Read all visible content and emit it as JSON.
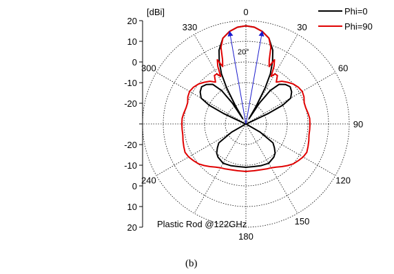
{
  "chart_data": {
    "type": "polar-line",
    "radial_unit_label": "[dBi]",
    "radial_range": [
      -30,
      20
    ],
    "radial_ticks_top": [
      "20",
      "10",
      "0",
      "-10",
      "-20"
    ],
    "radial_ticks_bottom": [
      "-20",
      "-10",
      "0",
      "10",
      "20"
    ],
    "angle_ticks": [
      {
        "deg": 0,
        "label": "0"
      },
      {
        "deg": 30,
        "label": "30"
      },
      {
        "deg": 60,
        "label": "60"
      },
      {
        "deg": 90,
        "label": "90"
      },
      {
        "deg": 120,
        "label": "120"
      },
      {
        "deg": 150,
        "label": "150"
      },
      {
        "deg": 180,
        "label": "180"
      },
      {
        "deg": 240,
        "label": "240"
      },
      {
        "deg": 300,
        "label": "300"
      },
      {
        "deg": 330,
        "label": "330"
      }
    ],
    "annotation": "Plastic Rod @122GHz",
    "beamwidth_label": "20°",
    "beamwidth_arrows_deg": [
      -10,
      10
    ],
    "series": [
      {
        "name": "Phi=0",
        "color": "#000000",
        "points": [
          [
            0,
            17.5
          ],
          [
            5,
            17
          ],
          [
            10,
            15.5
          ],
          [
            15,
            13
          ],
          [
            20,
            8
          ],
          [
            23,
            3
          ],
          [
            26,
            -3
          ],
          [
            28,
            -10
          ],
          [
            30,
            -20
          ],
          [
            31,
            -27
          ],
          [
            33,
            -18
          ],
          [
            36,
            -10
          ],
          [
            40,
            -5
          ],
          [
            45,
            -3
          ],
          [
            50,
            -2
          ],
          [
            55,
            -3
          ],
          [
            60,
            -5
          ],
          [
            63,
            -10
          ],
          [
            65,
            -18
          ],
          [
            67,
            -28
          ],
          [
            70,
            -30
          ],
          [
            90,
            -30
          ],
          [
            110,
            -30
          ],
          [
            120,
            -22
          ],
          [
            125,
            -14
          ],
          [
            130,
            -12
          ],
          [
            135,
            -10
          ],
          [
            140,
            -9
          ],
          [
            150,
            -8
          ],
          [
            160,
            -8.5
          ],
          [
            170,
            -9
          ],
          [
            180,
            -9
          ],
          [
            190,
            -9
          ],
          [
            200,
            -8.5
          ],
          [
            210,
            -8
          ],
          [
            220,
            -9
          ],
          [
            225,
            -10
          ],
          [
            230,
            -12
          ],
          [
            235,
            -14
          ],
          [
            240,
            -22
          ],
          [
            250,
            -30
          ],
          [
            270,
            -30
          ],
          [
            290,
            -30
          ],
          [
            293,
            -28
          ],
          [
            295,
            -18
          ],
          [
            297,
            -10
          ],
          [
            300,
            -5
          ],
          [
            305,
            -3
          ],
          [
            310,
            -2
          ],
          [
            315,
            -3
          ],
          [
            320,
            -5
          ],
          [
            324,
            -10
          ],
          [
            327,
            -18
          ],
          [
            329,
            -27
          ],
          [
            330,
            -20
          ],
          [
            332,
            -10
          ],
          [
            334,
            -3
          ],
          [
            337,
            3
          ],
          [
            340,
            8
          ],
          [
            345,
            13
          ],
          [
            350,
            15.5
          ],
          [
            355,
            17
          ],
          [
            360,
            17.5
          ]
        ]
      },
      {
        "name": "Phi=90",
        "color": "#e00000",
        "points": [
          [
            0,
            17.5
          ],
          [
            5,
            17
          ],
          [
            10,
            15.5
          ],
          [
            15,
            13
          ],
          [
            18,
            9
          ],
          [
            20,
            3
          ],
          [
            22,
            0
          ],
          [
            24,
            4
          ],
          [
            26,
            1
          ],
          [
            28,
            -4
          ],
          [
            30,
            -2
          ],
          [
            33,
            -2
          ],
          [
            36,
            -5
          ],
          [
            40,
            -3
          ],
          [
            45,
            -1.5
          ],
          [
            50,
            0
          ],
          [
            55,
            1
          ],
          [
            60,
            1.5
          ],
          [
            65,
            1
          ],
          [
            70,
            0
          ],
          [
            75,
            0
          ],
          [
            80,
            0.5
          ],
          [
            85,
            1
          ],
          [
            90,
            1
          ],
          [
            95,
            1
          ],
          [
            100,
            1
          ],
          [
            105,
            1.5
          ],
          [
            110,
            2
          ],
          [
            115,
            2.5
          ],
          [
            120,
            2
          ],
          [
            125,
            1
          ],
          [
            130,
            0
          ],
          [
            135,
            -1.5
          ],
          [
            140,
            -3
          ],
          [
            145,
            -4.5
          ],
          [
            150,
            -5.5
          ],
          [
            155,
            -6
          ],
          [
            160,
            -6.5
          ],
          [
            170,
            -7
          ],
          [
            180,
            -7
          ],
          [
            190,
            -7
          ],
          [
            200,
            -6.5
          ],
          [
            205,
            -6
          ],
          [
            210,
            -5.5
          ],
          [
            215,
            -4.5
          ],
          [
            220,
            -3
          ],
          [
            225,
            -1.5
          ],
          [
            230,
            0
          ],
          [
            235,
            1
          ],
          [
            240,
            2
          ],
          [
            245,
            2.5
          ],
          [
            250,
            2
          ],
          [
            255,
            1.5
          ],
          [
            260,
            1
          ],
          [
            265,
            1
          ],
          [
            270,
            1
          ],
          [
            275,
            1
          ],
          [
            280,
            0.5
          ],
          [
            285,
            0
          ],
          [
            290,
            0
          ],
          [
            295,
            1
          ],
          [
            300,
            1.5
          ],
          [
            305,
            1
          ],
          [
            310,
            0
          ],
          [
            315,
            -1.5
          ],
          [
            320,
            -3
          ],
          [
            324,
            -5
          ],
          [
            327,
            -2
          ],
          [
            330,
            -2
          ],
          [
            332,
            -4
          ],
          [
            334,
            1
          ],
          [
            336,
            4
          ],
          [
            338,
            0
          ],
          [
            340,
            3
          ],
          [
            342,
            9
          ],
          [
            345,
            13
          ],
          [
            350,
            15.5
          ],
          [
            355,
            17
          ],
          [
            360,
            17.5
          ]
        ]
      }
    ],
    "caption": "(b)"
  }
}
